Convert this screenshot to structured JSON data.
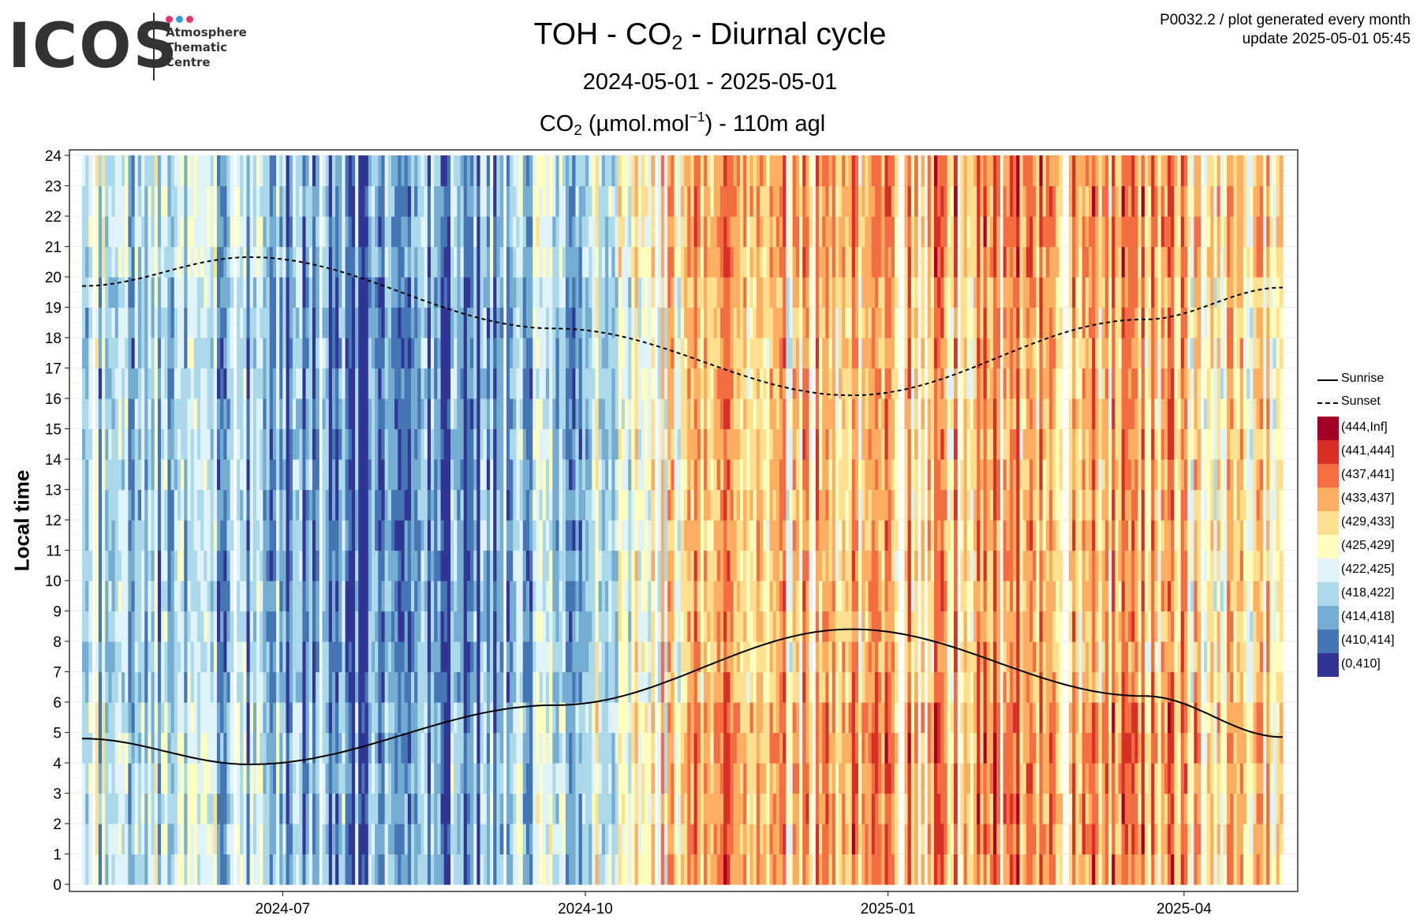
{
  "logo": {
    "word": "ICOS",
    "lines": [
      "Atmosphere",
      "Thematic",
      "Centre"
    ],
    "dot_colors": [
      "#e8336d",
      "#2b9fe0",
      "#e8336d"
    ]
  },
  "header": {
    "title_pre": "TOH - CO",
    "title_sub": "2",
    "title_post": " - Diurnal cycle",
    "subtitle": "2024-05-01 - 2025-05-01",
    "plot_title_pre": "CO",
    "plot_title_sub": "2",
    "plot_title_unit_pre": " (µmol.mol",
    "plot_title_sup": "−1",
    "plot_title_post": ") - 110m agl",
    "meta_line1": "P0032.2 / plot generated every month",
    "meta_line2": "update  2025-05-01 05:45"
  },
  "chart_data": {
    "type": "heatmap",
    "title": "TOH - CO2 - Diurnal cycle",
    "subtitle": "2024-05-01 - 2025-05-01",
    "value_label": "CO2 (µmol.mol-1) - 110m agl",
    "xlabel": "",
    "ylabel": "Local time",
    "x_range": [
      "2024-05-01",
      "2025-05-01"
    ],
    "y_range": [
      0,
      24
    ],
    "y_ticks": [
      0,
      1,
      2,
      3,
      4,
      5,
      6,
      7,
      8,
      9,
      10,
      11,
      12,
      13,
      14,
      15,
      16,
      17,
      18,
      19,
      20,
      21,
      22,
      23,
      24
    ],
    "x_ticks": [
      {
        "date": "2024-07-01",
        "label": "2024-07"
      },
      {
        "date": "2024-10-01",
        "label": "2024-10"
      },
      {
        "date": "2025-01-01",
        "label": "2025-01"
      },
      {
        "date": "2025-04-01",
        "label": "2025-04"
      }
    ],
    "grid": true,
    "legend_position": "right",
    "bins": [
      {
        "label": "(444,Inf]",
        "color": "#a50026"
      },
      {
        "label": "(441,444]",
        "color": "#d73027"
      },
      {
        "label": "(437,441]",
        "color": "#f46d43"
      },
      {
        "label": "(433,437]",
        "color": "#fdae61"
      },
      {
        "label": "(429,433]",
        "color": "#fee090"
      },
      {
        "label": "(425,429]",
        "color": "#ffffbf"
      },
      {
        "label": "(422,425]",
        "color": "#e0f3f8"
      },
      {
        "label": "(418,422]",
        "color": "#abd9e9"
      },
      {
        "label": "(414,418]",
        "color": "#74add1"
      },
      {
        "label": "(410,414]",
        "color": "#4575b4"
      },
      {
        "label": "(0,410]",
        "color": "#313695"
      }
    ],
    "approx_monthly_mean_bin_index": {
      "2024-05": 7,
      "2024-06": 7,
      "2024-07": 8,
      "2024-08": 9,
      "2024-09": 8,
      "2024-10": 6,
      "2024-11": 3,
      "2024-12": 4,
      "2025-01": 3,
      "2025-02": 3,
      "2025-03": 3,
      "2025-04": 4
    },
    "series": [
      {
        "name": "Sunrise",
        "style": "solid",
        "x": [
          "2024-05-01",
          "2024-06-21",
          "2024-09-22",
          "2024-12-21",
          "2025-03-20",
          "2025-05-01"
        ],
        "y": [
          4.8,
          3.95,
          5.9,
          8.4,
          6.2,
          4.85
        ]
      },
      {
        "name": "Sunset",
        "style": "dashed",
        "x": [
          "2024-05-01",
          "2024-06-21",
          "2024-09-22",
          "2024-12-21",
          "2025-03-20",
          "2025-05-01"
        ],
        "y": [
          19.7,
          20.65,
          18.3,
          16.1,
          18.6,
          19.65
        ]
      }
    ]
  }
}
